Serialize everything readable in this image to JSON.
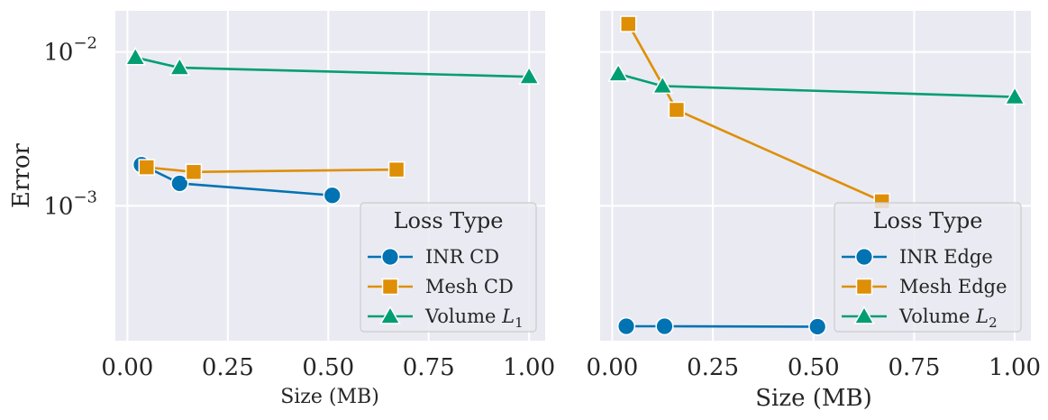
{
  "chart_data": [
    {
      "type": "line",
      "xlabel": "Size (MB)",
      "ylabel": "Error",
      "y_scale": "log",
      "xlim": [
        -0.03,
        1.04
      ],
      "ylim": [
        0.000133,
        0.0185
      ],
      "x_ticks": [
        "0.00",
        "0.25",
        "0.50",
        "0.75",
        "1.00"
      ],
      "y_ticks": [
        {
          "base": "10",
          "exp": "−2",
          "value": 0.01
        },
        {
          "base": "10",
          "exp": "−3",
          "value": 0.001
        }
      ],
      "grid": true,
      "legend": {
        "title": "Loss Type",
        "placement": "lower-right"
      },
      "series": [
        {
          "name": "INR CD",
          "color": "#0173b2",
          "marker": "circle",
          "x": [
            0.035,
            0.13,
            0.51
          ],
          "y": [
            0.00185,
            0.0014,
            0.00117
          ]
        },
        {
          "name": "Mesh CD",
          "color": "#de8f05",
          "marker": "square",
          "x": [
            0.048,
            0.165,
            0.67
          ],
          "y": [
            0.00178,
            0.00166,
            0.00172
          ]
        },
        {
          "name": "Volume L1",
          "name_main": "Volume ",
          "name_italic": "L",
          "name_sub": "1",
          "color": "#029e73",
          "marker": "triangle",
          "x": [
            0.02,
            0.13,
            1.0
          ],
          "y": [
            0.0092,
            0.0079,
            0.0069
          ]
        }
      ]
    },
    {
      "type": "line",
      "xlabel": "Size (MB)",
      "ylabel": "",
      "y_scale": "log",
      "xlim": [
        -0.03,
        1.04
      ],
      "ylim": [
        0.000133,
        0.0185
      ],
      "x_ticks": [
        "0.00",
        "0.25",
        "0.50",
        "0.75",
        "1.00"
      ],
      "grid": true,
      "legend": {
        "title": "Loss Type",
        "placement": "lower-right"
      },
      "series": [
        {
          "name": "INR Edge",
          "color": "#0173b2",
          "marker": "circle",
          "x": [
            0.035,
            0.13,
            0.51
          ],
          "y": [
            0.000165,
            0.000165,
            0.000164
          ]
        },
        {
          "name": "Mesh Edge",
          "color": "#de8f05",
          "marker": "square",
          "x": [
            0.04,
            0.16,
            0.67
          ],
          "y": [
            0.0152,
            0.0042,
            0.00107
          ]
        },
        {
          "name": "Volume L2",
          "name_main": "Volume ",
          "name_italic": "L",
          "name_sub": "2",
          "color": "#029e73",
          "marker": "triangle",
          "x": [
            0.015,
            0.125,
            1.0
          ],
          "y": [
            0.0072,
            0.006,
            0.0051
          ]
        }
      ]
    }
  ]
}
